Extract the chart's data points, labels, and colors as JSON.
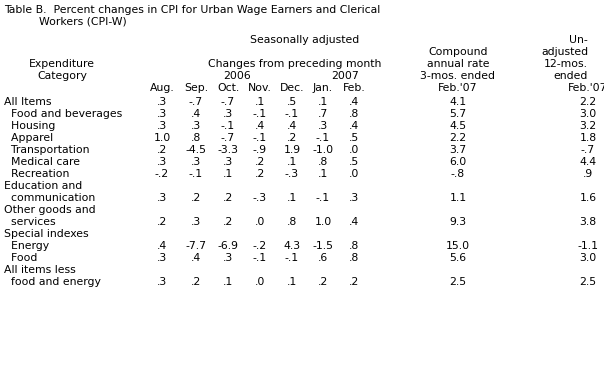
{
  "title_line1": "Table B.  Percent changes in CPI for Urban Wage Earners and Clerical",
  "title_line2": "          Workers (CPI-W)",
  "bg_color": "#ffffff",
  "font_family": "Courier New",
  "base_fontsize": 7.8,
  "fig_width": 6.04,
  "fig_height": 3.79,
  "dpi": 100,
  "rows": [
    {
      "label": "All Items",
      "vals": [
        ".3",
        "-.7",
        "-.7",
        ".1",
        ".5",
        ".1",
        ".4",
        "4.1",
        "2.2"
      ]
    },
    {
      "label": "  Food and beverages",
      "vals": [
        ".3",
        ".4",
        ".3",
        "-.1",
        "-.1",
        ".7",
        ".8",
        "5.7",
        "3.0"
      ]
    },
    {
      "label": "  Housing",
      "vals": [
        ".3",
        ".3",
        "-.1",
        ".4",
        ".4",
        ".3",
        ".4",
        "4.5",
        "3.2"
      ]
    },
    {
      "label": "  Apparel",
      "vals": [
        "1.0",
        ".8",
        "-.7",
        "-.1",
        ".2",
        "-.1",
        ".5",
        "2.2",
        "1.8"
      ]
    },
    {
      "label": "  Transportation",
      "vals": [
        ".2",
        "-4.5",
        "-3.3",
        "-.9",
        "1.9",
        "-1.0",
        ".0",
        "3.7",
        "-.7"
      ]
    },
    {
      "label": "  Medical care",
      "vals": [
        ".3",
        ".3",
        ".3",
        ".2",
        ".1",
        ".8",
        ".5",
        "6.0",
        "4.4"
      ]
    },
    {
      "label": "  Recreation",
      "vals": [
        "-.2",
        "-.1",
        ".1",
        ".2",
        "-.3",
        ".1",
        ".0",
        "-.8",
        ".9"
      ]
    },
    {
      "label": "Education and",
      "vals": [
        "",
        "",
        "",
        "",
        "",
        "",
        "",
        "",
        ""
      ]
    },
    {
      "label": "  communication",
      "vals": [
        ".3",
        ".2",
        ".2",
        "-.3",
        ".1",
        "-.1",
        ".3",
        "1.1",
        "1.6"
      ]
    },
    {
      "label": "Other goods and",
      "vals": [
        "",
        "",
        "",
        "",
        "",
        "",
        "",
        "",
        ""
      ]
    },
    {
      "label": "  services",
      "vals": [
        ".2",
        ".3",
        ".2",
        ".0",
        ".8",
        "1.0",
        ".4",
        "9.3",
        "3.8"
      ]
    },
    {
      "label": "Special indexes",
      "vals": [
        "",
        "",
        "",
        "",
        "",
        "",
        "",
        "",
        ""
      ]
    },
    {
      "label": "  Energy",
      "vals": [
        ".4",
        "-7.7",
        "-6.9",
        "-.2",
        "4.3",
        "-1.5",
        ".8",
        "15.0",
        "-1.1"
      ]
    },
    {
      "label": "  Food",
      "vals": [
        ".3",
        ".4",
        ".3",
        "-.1",
        "-.1",
        ".6",
        ".8",
        "5.6",
        "3.0"
      ]
    },
    {
      "label": "All items less",
      "vals": [
        "",
        "",
        "",
        "",
        "",
        "",
        "",
        "",
        ""
      ]
    },
    {
      "label": "  food and energy",
      "vals": [
        ".3",
        ".2",
        ".1",
        ".0",
        ".1",
        ".2",
        ".2",
        "2.5",
        "2.5"
      ]
    }
  ]
}
